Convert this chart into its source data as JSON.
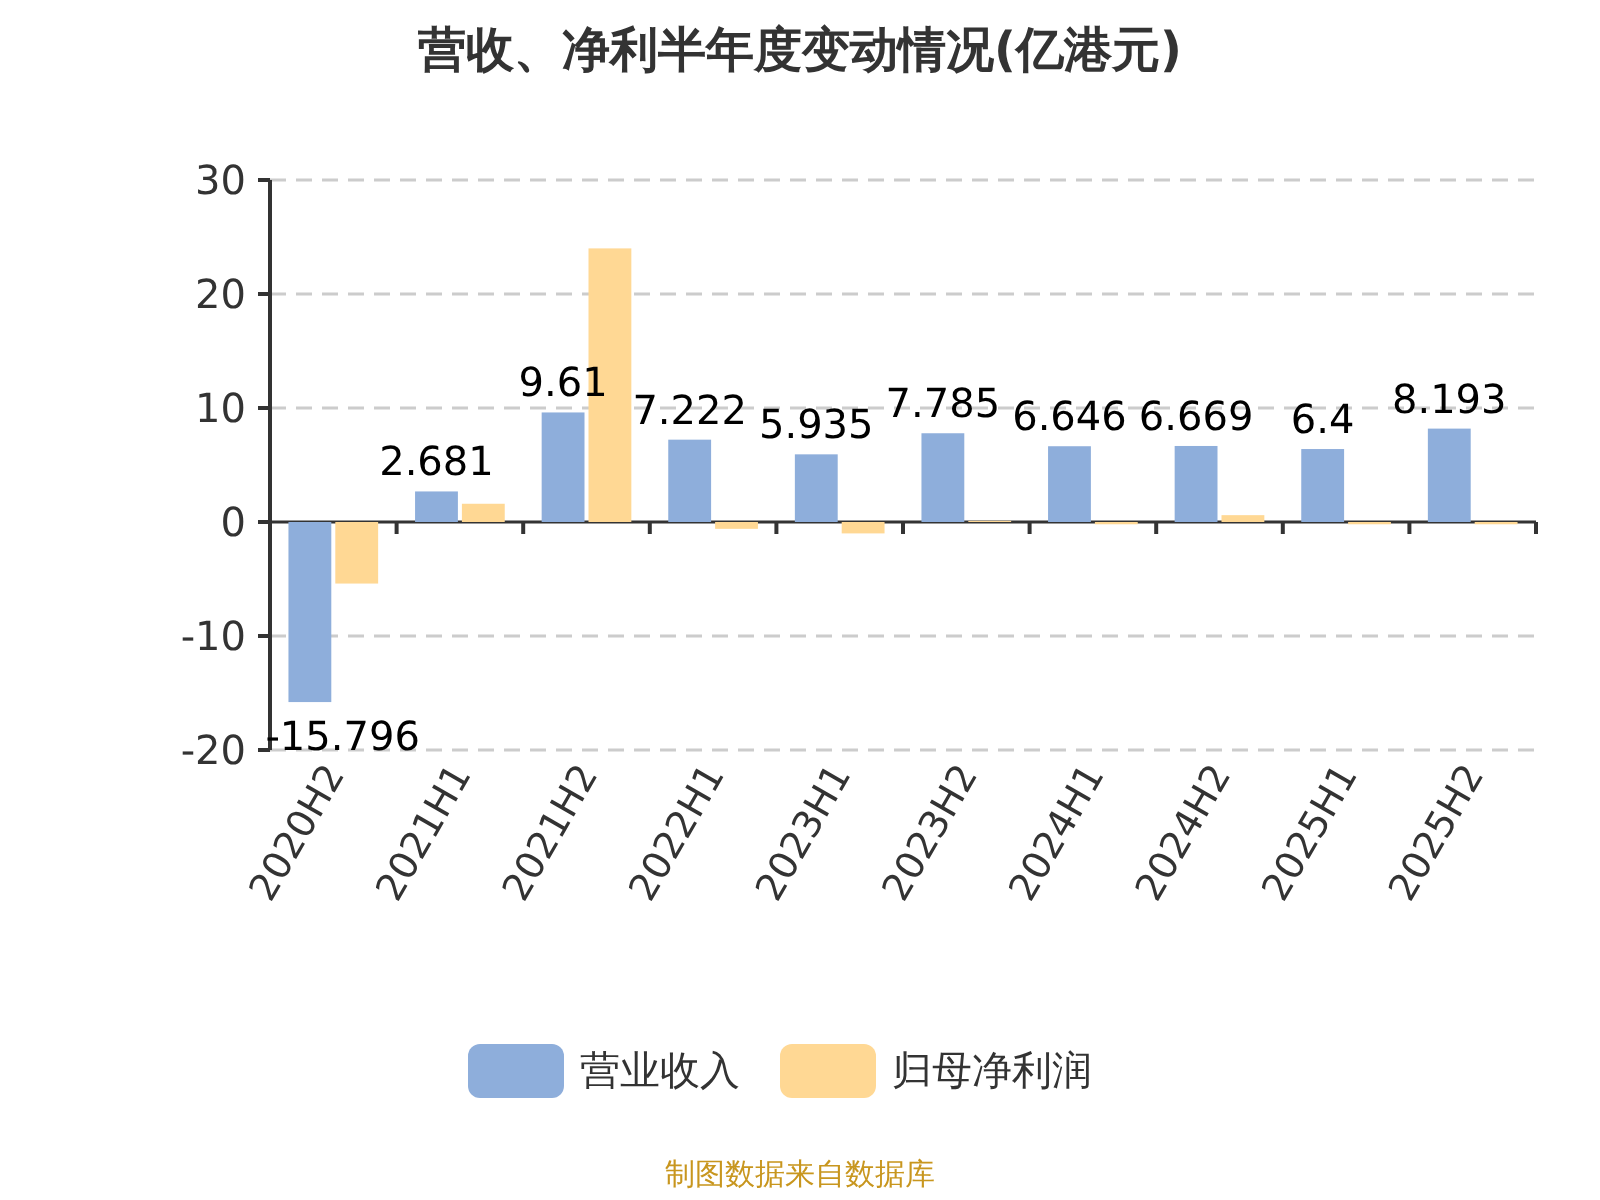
{
  "chart_data": {
    "type": "bar",
    "title": "营收、净利半年度变动情况(亿港元)",
    "categories": [
      "2020H2",
      "2021H1",
      "2021H2",
      "2022H1",
      "2023H1",
      "2023H2",
      "2024H1",
      "2024H2",
      "2025H1",
      "2025H2"
    ],
    "series": [
      {
        "name": "营业收入",
        "color": "#8eaedb",
        "data_labels": true,
        "values": [
          -15.796,
          2.681,
          9.61,
          7.222,
          5.935,
          7.785,
          6.646,
          6.669,
          6.4,
          8.193
        ]
      },
      {
        "name": "归母净利润",
        "color": "#ffd894",
        "values": [
          -5.4,
          1.6,
          24.0,
          -0.6,
          -1.0,
          0.1,
          -0.2,
          0.6,
          -0.2,
          -0.2
        ]
      }
    ],
    "ylim": [
      -20,
      30
    ],
    "yticks": [
      -20,
      -10,
      0,
      10,
      20,
      30
    ],
    "grid": "y",
    "legend": "bottom",
    "annotations": [
      "制图数据来自数据库"
    ]
  }
}
